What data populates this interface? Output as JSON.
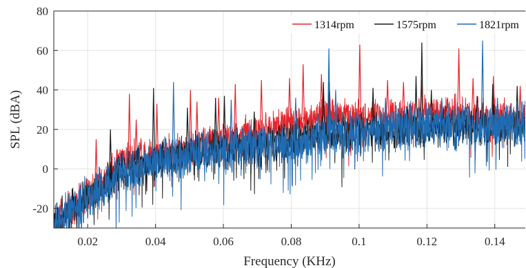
{
  "chart_data": {
    "type": "line",
    "title": "",
    "xlabel": "Frequency (KHz)",
    "ylabel": "SPL (dBA)",
    "xlim": [
      0.01,
      0.149
    ],
    "ylim": [
      -30,
      80
    ],
    "x_ticks": [
      0.02,
      0.04,
      0.06,
      0.08,
      0.1,
      0.12,
      0.14
    ],
    "x_tick_labels": [
      "0.02",
      "0.04",
      "0.06",
      "0.08",
      "0.1",
      "0.12",
      "0.14"
    ],
    "y_ticks": [
      -20,
      0,
      20,
      40,
      60,
      80
    ],
    "y_tick_labels": [
      "-20",
      "0",
      "20",
      "40",
      "60",
      "80"
    ],
    "grid": true,
    "legend_position": "top-right",
    "series": [
      {
        "name": "1314rpm",
        "color": "#e3262b",
        "draw_order": 1,
        "noise_amp": 7,
        "trend": [
          [
            0.01,
            -26
          ],
          [
            0.02,
            -13
          ],
          [
            0.03,
            4
          ],
          [
            0.04,
            8
          ],
          [
            0.05,
            11
          ],
          [
            0.06,
            15
          ],
          [
            0.07,
            19
          ],
          [
            0.08,
            24
          ],
          [
            0.09,
            27
          ],
          [
            0.1,
            26
          ],
          [
            0.11,
            27
          ],
          [
            0.12,
            28
          ],
          [
            0.13,
            28
          ],
          [
            0.14,
            27
          ],
          [
            0.149,
            25
          ]
        ],
        "peaks": [
          [
            0.0225,
            15
          ],
          [
            0.0323,
            38
          ],
          [
            0.0343,
            25
          ],
          [
            0.0404,
            33
          ],
          [
            0.0503,
            40
          ],
          [
            0.0522,
            34
          ],
          [
            0.0586,
            36
          ],
          [
            0.0635,
            43
          ],
          [
            0.0712,
            45
          ],
          [
            0.0795,
            46
          ],
          [
            0.0835,
            53
          ],
          [
            0.0889,
            48
          ],
          [
            0.0913,
            40
          ],
          [
            0.1002,
            63
          ],
          [
            0.1084,
            45
          ],
          [
            0.1131,
            44
          ],
          [
            0.1184,
            45
          ],
          [
            0.1294,
            61
          ],
          [
            0.1336,
            46
          ],
          [
            0.1396,
            47
          ],
          [
            0.1475,
            42
          ]
        ]
      },
      {
        "name": "1575rpm",
        "color": "#1a1a1a",
        "draw_order": 2,
        "noise_amp": 8,
        "trend": [
          [
            0.01,
            -28
          ],
          [
            0.02,
            -15
          ],
          [
            0.03,
            -1
          ],
          [
            0.04,
            4
          ],
          [
            0.05,
            8
          ],
          [
            0.06,
            10
          ],
          [
            0.07,
            12
          ],
          [
            0.08,
            15
          ],
          [
            0.09,
            18
          ],
          [
            0.1,
            20
          ],
          [
            0.11,
            20
          ],
          [
            0.12,
            21
          ],
          [
            0.13,
            22
          ],
          [
            0.14,
            22
          ],
          [
            0.149,
            22
          ]
        ],
        "peaks": [
          [
            0.0267,
            20
          ],
          [
            0.0394,
            41
          ],
          [
            0.0494,
            31
          ],
          [
            0.0577,
            36
          ],
          [
            0.0603,
            37
          ],
          [
            0.0691,
            29
          ],
          [
            0.0895,
            44
          ],
          [
            0.0912,
            44
          ],
          [
            0.1041,
            41
          ],
          [
            0.1168,
            47
          ],
          [
            0.1185,
            64
          ],
          [
            0.1213,
            40
          ],
          [
            0.1348,
            37
          ],
          [
            0.1394,
            43
          ],
          [
            0.1466,
            42
          ]
        ]
      },
      {
        "name": "1821rpm",
        "color": "#1f6cb3",
        "draw_order": 3,
        "noise_amp": 9,
        "trend": [
          [
            0.01,
            -29
          ],
          [
            0.02,
            -14
          ],
          [
            0.03,
            -2
          ],
          [
            0.04,
            3
          ],
          [
            0.05,
            7
          ],
          [
            0.06,
            9
          ],
          [
            0.07,
            12
          ],
          [
            0.08,
            14
          ],
          [
            0.09,
            17
          ],
          [
            0.1,
            19
          ],
          [
            0.11,
            21
          ],
          [
            0.12,
            22
          ],
          [
            0.13,
            22
          ],
          [
            0.14,
            22
          ],
          [
            0.149,
            23
          ]
        ],
        "peaks": [
          [
            0.0453,
            44
          ],
          [
            0.0623,
            35
          ],
          [
            0.0813,
            36
          ],
          [
            0.0911,
            61
          ],
          [
            0.0931,
            40
          ],
          [
            0.1078,
            36
          ],
          [
            0.1244,
            36
          ],
          [
            0.1364,
            65
          ],
          [
            0.1408,
            36
          ]
        ]
      }
    ]
  }
}
